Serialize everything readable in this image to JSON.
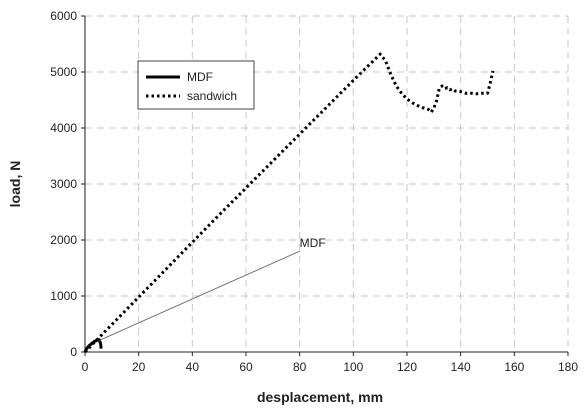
{
  "chart_data": {
    "type": "line",
    "title": "",
    "xlabel": "desplacement, mm",
    "ylabel": "load, N",
    "xlim": [
      0,
      180
    ],
    "ylim": [
      0,
      6000
    ],
    "xticks": [
      0,
      20,
      40,
      60,
      80,
      100,
      120,
      140,
      160,
      180
    ],
    "yticks": [
      0,
      1000,
      2000,
      3000,
      4000,
      5000,
      6000
    ],
    "grid": "dashed",
    "legend_position": "top-left",
    "series": [
      {
        "name": "MDF",
        "style": "solid",
        "color": "#000000",
        "x": [
          0,
          0.5,
          1.5,
          2.5,
          3.5,
          4.5,
          5.3,
          5.8,
          6.0
        ],
        "y": [
          0,
          50,
          110,
          150,
          190,
          210,
          220,
          150,
          60
        ]
      },
      {
        "name": "sandwich",
        "style": "dotted",
        "color": "#000000",
        "x": [
          0,
          50,
          100,
          110,
          112,
          114,
          116,
          118,
          120,
          122,
          124,
          126,
          128,
          129,
          130,
          131,
          132,
          133,
          134,
          135,
          136,
          137,
          138,
          140,
          142,
          144,
          146,
          148,
          150,
          151,
          152
        ],
        "y": [
          0,
          2450,
          4850,
          5320,
          5200,
          4950,
          4750,
          4620,
          4520,
          4450,
          4400,
          4360,
          4330,
          4280,
          4350,
          4480,
          4700,
          4750,
          4700,
          4720,
          4680,
          4700,
          4660,
          4650,
          4620,
          4620,
          4610,
          4620,
          4620,
          4800,
          5020
        ]
      }
    ],
    "annotation": {
      "text": "MDF",
      "from": [
        5,
        200
      ],
      "to": [
        80,
        1800
      ]
    }
  }
}
